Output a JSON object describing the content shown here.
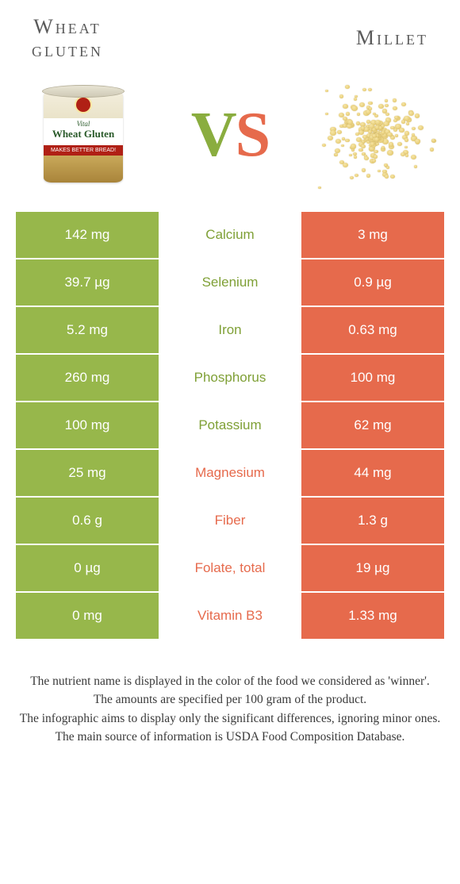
{
  "header": {
    "left_title_line1": "Wheat",
    "left_title_line2": "gluten",
    "right_title": "Millet",
    "vs_v": "V",
    "vs_s": "S",
    "can_label_small": "Vital",
    "can_label_big": "Wheat Gluten",
    "can_red_strip": "MAKES BETTER BREAD!"
  },
  "colors": {
    "left_bg": "#97b74b",
    "right_bg": "#e66a4c",
    "mid_green": "#7fa036",
    "mid_orange": "#e66a4c"
  },
  "rows": [
    {
      "left": "142 mg",
      "label": "Calcium",
      "right": "3 mg",
      "winner": "left"
    },
    {
      "left": "39.7 µg",
      "label": "Selenium",
      "right": "0.9 µg",
      "winner": "left"
    },
    {
      "left": "5.2 mg",
      "label": "Iron",
      "right": "0.63 mg",
      "winner": "left"
    },
    {
      "left": "260 mg",
      "label": "Phosphorus",
      "right": "100 mg",
      "winner": "left"
    },
    {
      "left": "100 mg",
      "label": "Potassium",
      "right": "62 mg",
      "winner": "left"
    },
    {
      "left": "25 mg",
      "label": "Magnesium",
      "right": "44 mg",
      "winner": "right"
    },
    {
      "left": "0.6 g",
      "label": "Fiber",
      "right": "1.3 g",
      "winner": "right"
    },
    {
      "left": "0 µg",
      "label": "Folate, total",
      "right": "19 µg",
      "winner": "right"
    },
    {
      "left": "0 mg",
      "label": "Vitamin B3",
      "right": "1.33 mg",
      "winner": "right"
    }
  ],
  "footnote": {
    "l1": "The nutrient name is displayed in the color of the food we considered as 'winner'.",
    "l2": "The amounts are specified per 100 gram of the product.",
    "l3": "The infographic aims to display only the significant differences, ignoring minor ones.",
    "l4": "The main source of information is USDA Food Composition Database."
  }
}
